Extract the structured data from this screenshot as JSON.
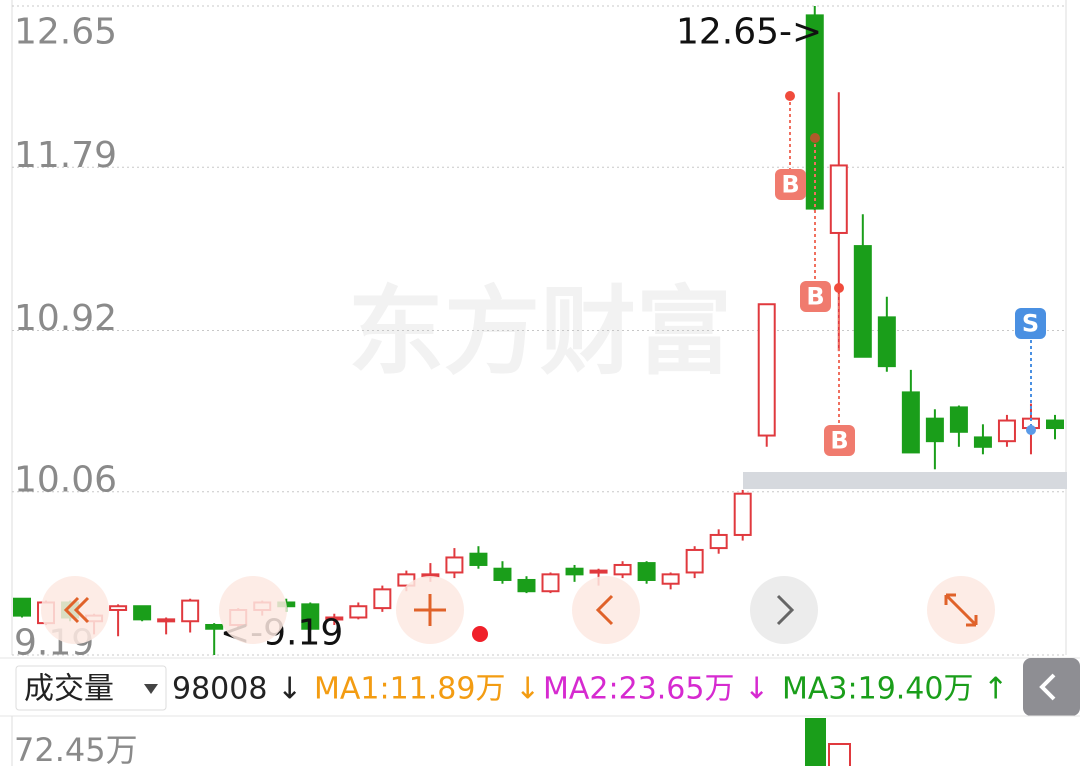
{
  "chart_data": {
    "type": "candlestick",
    "ylim": [
      9.19,
      12.65
    ],
    "yticks": [
      12.65,
      11.79,
      10.92,
      10.06,
      9.19
    ],
    "grid": true,
    "up_color": "#e0393e",
    "down_color": "#1a9e1a",
    "watermark": "东方财富",
    "open": [
      9.49,
      9.36,
      9.47,
      9.37,
      9.43,
      9.45,
      9.37,
      9.37,
      9.35,
      9.35,
      9.43,
      9.47,
      9.46,
      9.38,
      9.39,
      9.44,
      9.56,
      9.61,
      9.63,
      9.73,
      9.65,
      9.59,
      9.53,
      9.65,
      9.63,
      9.62,
      9.68,
      9.57,
      9.63,
      9.76,
      9.83,
      10.36,
      null,
      12.6,
      11.44,
      11.37,
      10.99,
      10.59,
      10.45,
      10.51,
      10.35,
      10.33,
      10.4,
      10.44
    ],
    "high": [
      9.49,
      9.48,
      9.48,
      9.41,
      9.46,
      9.45,
      9.39,
      9.49,
      9.36,
      9.44,
      9.48,
      9.49,
      9.47,
      9.41,
      9.47,
      9.56,
      9.64,
      9.68,
      9.76,
      9.77,
      9.69,
      9.61,
      9.63,
      9.67,
      9.65,
      9.69,
      9.69,
      9.63,
      9.77,
      9.86,
      10.07,
      11.06,
      null,
      12.65,
      12.19,
      11.54,
      11.1,
      10.71,
      10.5,
      10.52,
      10.42,
      10.47,
      10.53,
      10.47
    ],
    "low": [
      9.39,
      9.35,
      9.37,
      9.3,
      9.29,
      9.37,
      9.3,
      9.31,
      9.19,
      9.33,
      9.4,
      9.42,
      9.32,
      9.35,
      9.38,
      9.42,
      9.53,
      9.58,
      9.6,
      9.65,
      9.57,
      9.52,
      9.52,
      9.58,
      9.56,
      9.6,
      9.57,
      9.54,
      9.6,
      9.73,
      9.8,
      10.3,
      null,
      11.56,
      10.81,
      10.78,
      10.7,
      10.27,
      10.18,
      10.3,
      10.26,
      10.3,
      10.26,
      10.34
    ],
    "close": [
      9.4,
      9.47,
      9.39,
      9.4,
      9.45,
      9.38,
      9.38,
      9.48,
      9.33,
      9.43,
      9.47,
      9.45,
      9.33,
      9.39,
      9.45,
      9.54,
      9.62,
      9.62,
      9.71,
      9.67,
      9.59,
      9.53,
      9.62,
      9.62,
      9.64,
      9.67,
      9.59,
      9.62,
      9.75,
      9.83,
      10.05,
      11.06,
      null,
      11.57,
      11.8,
      10.78,
      10.73,
      10.27,
      10.33,
      10.38,
      10.3,
      10.44,
      10.45,
      10.4
    ],
    "annotations": [
      "12.65->",
      "<-9.19"
    ],
    "markers": [
      "B",
      "B",
      "B",
      "S"
    ],
    "volume_panel": {
      "label": "成交量",
      "value": "98008 ↓",
      "ma": [
        {
          "text": "MA1:11.89万 ↓",
          "color": "#f39c12"
        },
        {
          "text": "MA2:23.65万 ↓",
          "color": "#d62ad0"
        },
        {
          "text": "MA3:19.40万 ↑",
          "color": "#1a9e1a"
        }
      ],
      "ytick": "72.45万"
    }
  }
}
